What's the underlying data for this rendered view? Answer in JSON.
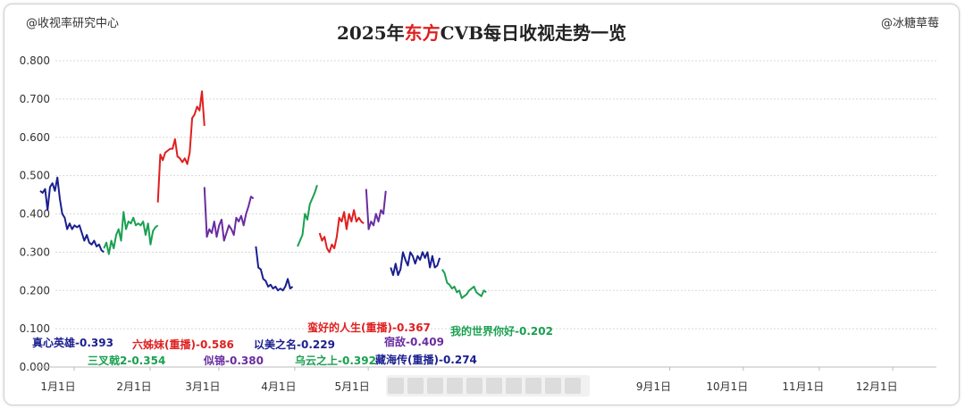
{
  "header": {
    "left_credit": "@收视率研究中心",
    "right_credit": "@冰糖草莓",
    "title_prefix": "2025年",
    "title_highlight": "东方",
    "title_suffix": "CVB每日收视走势一览"
  },
  "colors": {
    "blue": "#1a1f8f",
    "green": "#1aa050",
    "red": "#e01f1f",
    "purple": "#6a2ca0",
    "grid": "#d8d8d8",
    "title_highlight": "#e01f1f"
  },
  "chart_data": {
    "type": "line",
    "title": "2025年东方CVB每日收视走势一览",
    "xlabel": "",
    "ylabel": "",
    "ylim": [
      0,
      0.8
    ],
    "yticks": [
      "0.000",
      "0.100",
      "0.200",
      "0.300",
      "0.400",
      "0.500",
      "0.600",
      "0.700",
      "0.800"
    ],
    "xticks": [
      {
        "label": "1月1日",
        "day": 1
      },
      {
        "label": "2月1日",
        "day": 32
      },
      {
        "label": "3月1日",
        "day": 60
      },
      {
        "label": "4月1日",
        "day": 91
      },
      {
        "label": "5月1日",
        "day": 121
      },
      {
        "label": "9月1日",
        "day": 244
      },
      {
        "label": "10月1日",
        "day": 274
      },
      {
        "label": "11月1日",
        "day": 305
      },
      {
        "label": "12月1日",
        "day": 335
      }
    ],
    "grid": true,
    "series": [
      {
        "name": "真心英雄",
        "avg": "0.393",
        "color": "#1a1f8f",
        "x": [
          1,
          2,
          3,
          4,
          5,
          6,
          7,
          8,
          9,
          10,
          11,
          12,
          13,
          14,
          15,
          16,
          17,
          18,
          19,
          20,
          21,
          22,
          23,
          24,
          25,
          26,
          27
        ],
        "y": [
          0.46,
          0.455,
          0.465,
          0.41,
          0.47,
          0.48,
          0.46,
          0.495,
          0.44,
          0.4,
          0.39,
          0.36,
          0.375,
          0.36,
          0.37,
          0.365,
          0.37,
          0.35,
          0.33,
          0.345,
          0.325,
          0.32,
          0.33,
          0.315,
          0.32,
          0.305,
          0.3
        ]
      },
      {
        "name": "三叉戟2",
        "avg": "0.354",
        "color": "#1aa050",
        "x": [
          27,
          28,
          29,
          30,
          31,
          32,
          33,
          34,
          35,
          36,
          37,
          38,
          39,
          40,
          41,
          42,
          43,
          44,
          45,
          46,
          47,
          48,
          49
        ],
        "y": [
          0.31,
          0.325,
          0.295,
          0.33,
          0.31,
          0.345,
          0.36,
          0.33,
          0.405,
          0.36,
          0.38,
          0.375,
          0.39,
          0.37,
          0.375,
          0.37,
          0.38,
          0.345,
          0.375,
          0.32,
          0.355,
          0.365,
          0.37
        ]
      },
      {
        "name": "六姊妹(重播)",
        "avg": "0.586",
        "color": "#e01f1f",
        "x": [
          49,
          50,
          51,
          52,
          53,
          54,
          55,
          56,
          57,
          58,
          59,
          60,
          61,
          62,
          63,
          64,
          65,
          66,
          67,
          68
        ],
        "y": [
          0.43,
          0.555,
          0.54,
          0.56,
          0.565,
          0.57,
          0.57,
          0.595,
          0.55,
          0.545,
          0.535,
          0.545,
          0.53,
          0.56,
          0.65,
          0.66,
          0.68,
          0.67,
          0.72,
          0.63
        ]
      },
      {
        "name": "似锦",
        "avg": "0.380",
        "color": "#6a2ca0",
        "x": [
          68,
          69,
          70,
          71,
          72,
          73,
          74,
          75,
          76,
          77,
          78,
          79,
          80,
          81,
          82,
          83,
          84,
          85,
          86,
          87,
          88
        ],
        "y": [
          0.47,
          0.34,
          0.36,
          0.35,
          0.38,
          0.34,
          0.37,
          0.385,
          0.33,
          0.35,
          0.37,
          0.36,
          0.345,
          0.39,
          0.38,
          0.395,
          0.37,
          0.4,
          0.42,
          0.445,
          0.44
        ]
      },
      {
        "name": "以美之名",
        "avg": "0.229",
        "color": "#1a1f8f",
        "x": [
          89,
          90,
          91,
          92,
          93,
          94,
          95,
          96,
          97,
          98,
          99,
          100,
          101,
          102,
          103,
          104
        ],
        "y": [
          0.315,
          0.26,
          0.255,
          0.23,
          0.225,
          0.21,
          0.215,
          0.205,
          0.21,
          0.2,
          0.205,
          0.2,
          0.21,
          0.23,
          0.205,
          0.21
        ]
      },
      {
        "name": "乌云之上",
        "avg": "0.392",
        "color": "#1aa050",
        "x": [
          106,
          107,
          108,
          109,
          110,
          111,
          112,
          113,
          114
        ],
        "y": [
          0.315,
          0.33,
          0.345,
          0.4,
          0.385,
          0.425,
          0.44,
          0.455,
          0.475
        ]
      },
      {
        "name": "蛮好的人生(重播)",
        "avg": "0.367",
        "color": "#e01f1f",
        "x": [
          115,
          116,
          117,
          118,
          119,
          120,
          121,
          122,
          123,
          124,
          125,
          126,
          127,
          128,
          129,
          130,
          131,
          132,
          133
        ],
        "y": [
          0.35,
          0.33,
          0.34,
          0.31,
          0.3,
          0.32,
          0.31,
          0.34,
          0.39,
          0.38,
          0.405,
          0.36,
          0.4,
          0.38,
          0.41,
          0.38,
          0.39,
          0.38,
          0.375
        ]
      },
      {
        "name": "宿敌",
        "avg": "0.409",
        "color": "#6a2ca0",
        "x": [
          134,
          135,
          136,
          137,
          138,
          139,
          140,
          141,
          142
        ],
        "y": [
          0.465,
          0.36,
          0.38,
          0.37,
          0.4,
          0.38,
          0.41,
          0.4,
          0.46
        ]
      },
      {
        "name": "藏海传(重播)",
        "avg": "0.274",
        "color": "#1a1f8f",
        "x": [
          144,
          145,
          146,
          147,
          148,
          149,
          150,
          151,
          152,
          153,
          154,
          155,
          156,
          157,
          158,
          159,
          160,
          161,
          162,
          163,
          164
        ],
        "y": [
          0.26,
          0.24,
          0.27,
          0.24,
          0.255,
          0.3,
          0.28,
          0.265,
          0.3,
          0.29,
          0.27,
          0.29,
          0.28,
          0.3,
          0.285,
          0.3,
          0.26,
          0.29,
          0.26,
          0.265,
          0.285
        ]
      },
      {
        "name": "我的世界你好",
        "avg": "0.202",
        "color": "#1aa050",
        "x": [
          165,
          166,
          167,
          168,
          169,
          170,
          171,
          172,
          173,
          174,
          175,
          176,
          177,
          178,
          179,
          180,
          181,
          182,
          183
        ],
        "y": [
          0.255,
          0.245,
          0.22,
          0.215,
          0.205,
          0.21,
          0.195,
          0.2,
          0.18,
          0.185,
          0.19,
          0.2,
          0.205,
          0.21,
          0.195,
          0.19,
          0.185,
          0.2,
          0.195
        ]
      }
    ]
  },
  "annotations": [
    {
      "text": "真心英雄-0.393",
      "color": "#1a1f8f"
    },
    {
      "text": "三叉戟2-0.354",
      "color": "#1aa050"
    },
    {
      "text": "六姊妹(重播)-0.586",
      "color": "#e01f1f"
    },
    {
      "text": "似锦-0.380",
      "color": "#6a2ca0"
    },
    {
      "text": "以美之名-0.229",
      "color": "#1a1f8f"
    },
    {
      "text": "乌云之上-0.392",
      "color": "#1aa050"
    },
    {
      "text": "蛮好的人生(重播)-0.367",
      "color": "#e01f1f"
    },
    {
      "text": "宿敌-0.409",
      "color": "#6a2ca0"
    },
    {
      "text": "藏海传(重播)-0.274",
      "color": "#1a1f8f"
    },
    {
      "text": "我的世界你好-0.202",
      "color": "#1aa050"
    }
  ]
}
